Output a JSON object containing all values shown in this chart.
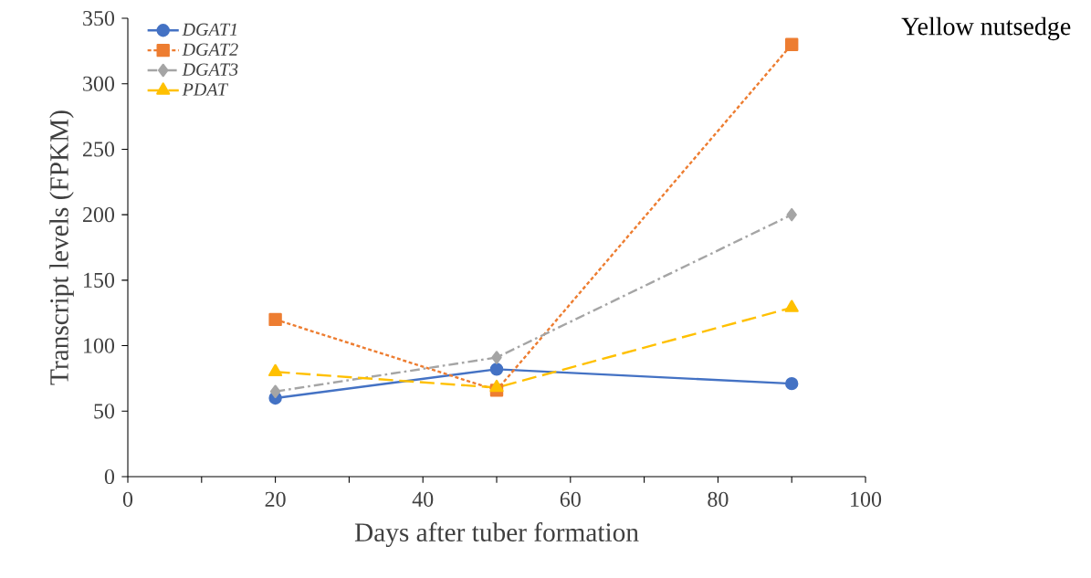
{
  "chart_data": {
    "type": "line",
    "title": "Yellow nutsedge",
    "xlabel": "Days after tuber formation",
    "ylabel": "Transcript levels (FPKM)",
    "x": [
      20,
      50,
      90
    ],
    "series": [
      {
        "name": "*DGAT1*",
        "color": "#4472c4",
        "values": [
          60,
          82,
          71
        ],
        "marker": "circle",
        "line_style": "solid"
      },
      {
        "name": "*DGAT2*",
        "color": "#ed7d31",
        "values": [
          120,
          66,
          330
        ],
        "marker": "square",
        "line_style": "dotted"
      },
      {
        "name": "*DGAT3*",
        "color": "#a5a5a5",
        "values": [
          65,
          91,
          200
        ],
        "marker": "diamond",
        "line_style": "dashdot"
      },
      {
        "name": "*PDAT*",
        "color": "#ffc000",
        "values": [
          80,
          68,
          129
        ],
        "marker": "triangle",
        "line_style": "dashed"
      }
    ],
    "xlim": [
      0,
      100
    ],
    "xticks": [
      0,
      {
        "value": 10,
        "label": null
      },
      20,
      {
        "value": 30,
        "label": null
      },
      40,
      {
        "value": 50,
        "label": null
      },
      60,
      {
        "value": 70,
        "label": null
      },
      80,
      {
        "value": 90,
        "label": null
      },
      100
    ],
    "ylim": [
      0,
      350
    ],
    "yticks": [
      0,
      50,
      100,
      150,
      200,
      250,
      300,
      350
    ],
    "grid": false,
    "legend": "top left"
  }
}
